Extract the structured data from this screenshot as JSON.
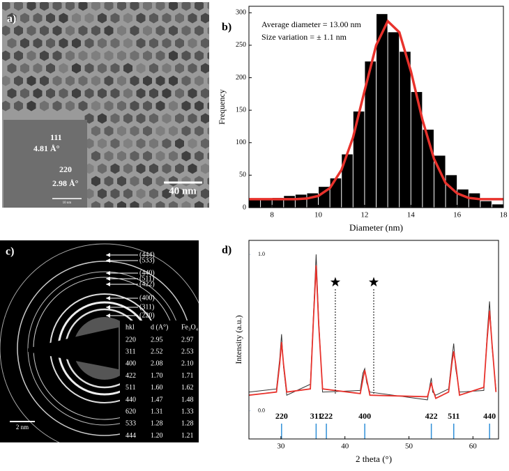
{
  "panel_a": {
    "label": "a)",
    "scale": "40 nm",
    "inset": {
      "planes": [
        "111",
        "220"
      ],
      "spacings": [
        "4.81 Å°",
        "2.98 Å°"
      ],
      "scale": "10 nm"
    }
  },
  "panel_c": {
    "label": "c)",
    "scale": "2 nm",
    "ring_labels": [
      "(444)",
      "(533)",
      "(440)",
      "(511)",
      "(422)",
      "(400)",
      "(311)",
      "(220)"
    ],
    "table": {
      "header": [
        "hkl",
        "d (A°)",
        "Fe₃O₄"
      ],
      "rows": [
        [
          "220",
          "2.95",
          "2.97"
        ],
        [
          "311",
          "2.52",
          "2.53"
        ],
        [
          "400",
          "2.08",
          "2.10"
        ],
        [
          "422",
          "1.70",
          "1.71"
        ],
        [
          "511",
          "1.60",
          "1.62"
        ],
        [
          "440",
          "1.47",
          "1.48"
        ],
        [
          "620",
          "1.31",
          "1.33"
        ],
        [
          "533",
          "1.28",
          "1.28"
        ],
        [
          "444",
          "1.20",
          "1.21"
        ]
      ]
    }
  },
  "chart_data": [
    {
      "type": "histogram",
      "panel_label": "b)",
      "xlabel": "Diameter (nm)",
      "ylabel": "Frequency",
      "annotations": [
        "Average diameter = 13.00 nm",
        "Size variation = ± 1.1 nm"
      ],
      "bins": [
        7,
        7.5,
        8,
        8.5,
        9,
        9.5,
        10,
        10.5,
        11,
        11.5,
        12,
        12.5,
        13,
        13.5,
        14,
        14.5,
        15,
        15.5,
        16,
        16.5,
        17,
        17.5,
        18
      ],
      "values": [
        12,
        13,
        15,
        18,
        20,
        22,
        32,
        45,
        82,
        148,
        225,
        298,
        270,
        240,
        178,
        120,
        80,
        50,
        28,
        22,
        10,
        5
      ],
      "color": "#000000",
      "fit": {
        "color": "#e8322c",
        "x": [
          7,
          7.5,
          8,
          8.5,
          9,
          9.5,
          10,
          10.5,
          11,
          11.5,
          12,
          12.5,
          13,
          13.5,
          14,
          14.5,
          15,
          15.5,
          16,
          16.5,
          17,
          17.5,
          18
        ],
        "values": [
          13,
          13,
          13,
          13,
          13,
          14,
          18,
          30,
          58,
          108,
          180,
          250,
          287,
          270,
          210,
          135,
          75,
          38,
          22,
          15,
          13,
          13,
          13
        ]
      },
      "xlim": [
        7,
        18
      ],
      "xticks": [
        8,
        10,
        12,
        14,
        16,
        18
      ],
      "ylim": [
        0,
        310
      ],
      "yticks": [
        0,
        50,
        100,
        150,
        200,
        250,
        300
      ]
    },
    {
      "type": "line",
      "panel_label": "d)",
      "xlabel": "2 theta (°)",
      "ylabel": "Intensity (a.u.)",
      "xlim": [
        25,
        64
      ],
      "xticks": [
        30,
        40,
        50,
        60
      ],
      "ylim": [
        -0.18,
        1.09
      ],
      "yticks": [
        {
          "value": 0,
          "label": "0.0"
        },
        {
          "value": 1,
          "label": "1.0"
        }
      ],
      "series": [
        {
          "color": "#333333",
          "x": [
            25,
            29.3,
            29.8,
            30.1,
            30.4,
            30.9,
            34.6,
            35.1,
            35.5,
            35.9,
            36.5,
            42.4,
            42.8,
            43.1,
            43.4,
            43.9,
            52.9,
            53.3,
            53.5,
            53.7,
            54.2,
            56.2,
            56.7,
            57.0,
            57.3,
            57.9,
            61.7,
            62.2,
            62.6,
            63.0,
            63.6
          ],
          "values": [
            0.12,
            0.14,
            0.33,
            0.49,
            0.28,
            0.1,
            0.17,
            0.63,
            1.0,
            0.58,
            0.12,
            0.13,
            0.24,
            0.27,
            0.18,
            0.12,
            0.07,
            0.17,
            0.21,
            0.12,
            0.1,
            0.14,
            0.33,
            0.43,
            0.27,
            0.12,
            0.13,
            0.48,
            0.7,
            0.4,
            0.14
          ]
        },
        {
          "color": "#e8322c",
          "x": [
            25,
            29.3,
            29.8,
            30.1,
            30.4,
            30.9,
            34.6,
            35.1,
            35.5,
            35.9,
            36.5,
            42.4,
            42.8,
            43.1,
            43.4,
            43.9,
            52.9,
            53.3,
            53.5,
            53.7,
            54.2,
            56.2,
            56.7,
            57.0,
            57.3,
            57.9,
            61.7,
            62.2,
            62.6,
            63.0,
            63.6
          ],
          "values": [
            0.1,
            0.12,
            0.3,
            0.44,
            0.3,
            0.12,
            0.14,
            0.6,
            0.93,
            0.55,
            0.14,
            0.11,
            0.2,
            0.26,
            0.2,
            0.1,
            0.09,
            0.15,
            0.18,
            0.14,
            0.08,
            0.12,
            0.3,
            0.38,
            0.3,
            0.1,
            0.15,
            0.45,
            0.64,
            0.42,
            0.12
          ]
        }
      ],
      "reference_lines": {
        "color": "#2f8fd8",
        "x": [
          30.1,
          35.5,
          37.1,
          43.1,
          53.5,
          57.0,
          62.6
        ],
        "labels": [
          "220",
          "311",
          "222",
          "400",
          "422",
          "511",
          "440"
        ]
      },
      "stars": {
        "x": [
          38.5,
          44.5
        ]
      }
    }
  ]
}
